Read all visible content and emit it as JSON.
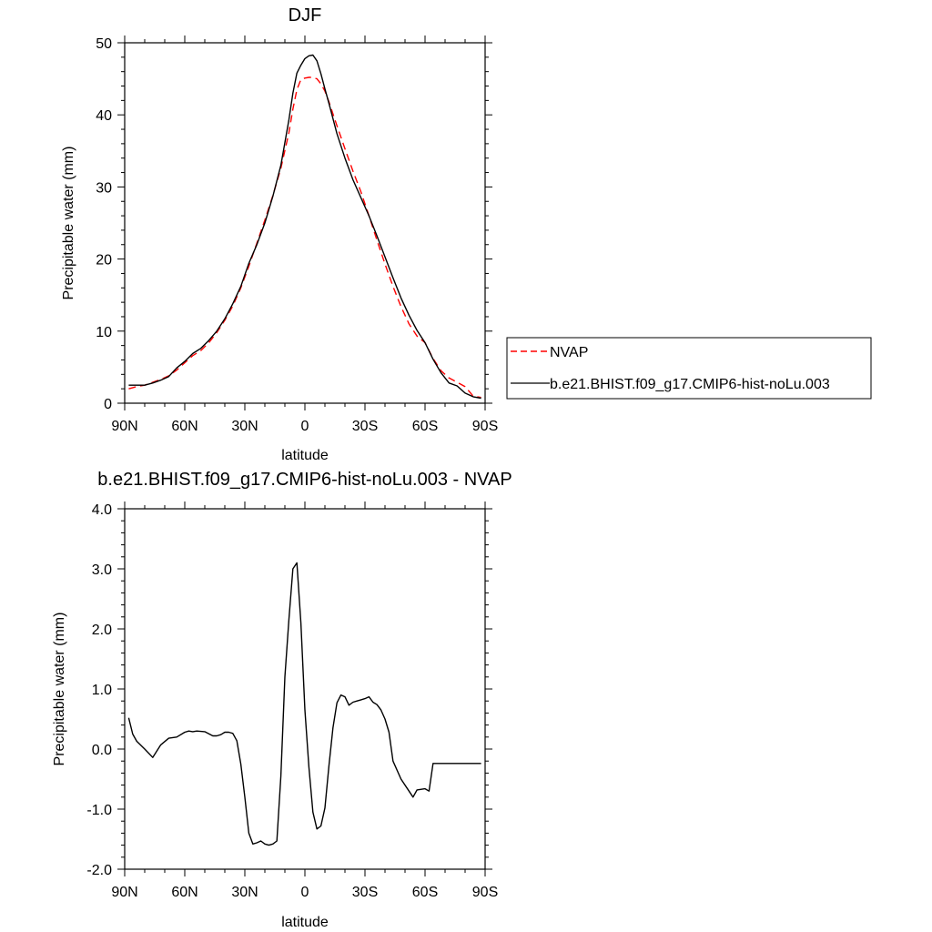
{
  "chart_data": [
    {
      "type": "line",
      "title": "DJF",
      "xlabel": "latitude",
      "ylabel": "Precipitable water (mm)",
      "xlim": [
        -90,
        90
      ],
      "ylim": [
        0,
        50
      ],
      "x_ticks": [
        -90,
        -60,
        -30,
        0,
        30,
        60,
        90
      ],
      "x_tick_labels": [
        "90N",
        "60N",
        "30N",
        "0",
        "30S",
        "60S",
        "90S"
      ],
      "y_ticks": [
        0,
        10,
        20,
        30,
        40,
        50
      ],
      "y_tick_labels": [
        "0",
        "10",
        "20",
        "30",
        "40",
        "50"
      ],
      "legend_position": "right",
      "series": [
        {
          "name": "NVAP",
          "color": "#ff0000",
          "dash": "dashed",
          "x": [
            -88,
            -84,
            -80,
            -76,
            -72,
            -68,
            -64,
            -60,
            -56,
            -52,
            -48,
            -44,
            -40,
            -36,
            -32,
            -28,
            -24,
            -20,
            -16,
            -12,
            -8,
            -6,
            -4,
            -2,
            0,
            2,
            4,
            6,
            8,
            10,
            12,
            16,
            20,
            24,
            28,
            32,
            36,
            40,
            44,
            48,
            52,
            56,
            60,
            64,
            68,
            72,
            76,
            80,
            84,
            88
          ],
          "y": [
            2.0,
            2.3,
            2.5,
            2.9,
            3.3,
            3.8,
            4.6,
            5.6,
            6.6,
            7.3,
            8.4,
            9.8,
            11.5,
            13.5,
            16.0,
            19.0,
            22.2,
            25.4,
            28.8,
            32.6,
            37.5,
            40.8,
            43.5,
            44.9,
            45.1,
            45.2,
            45.2,
            45.0,
            44.3,
            43.3,
            41.8,
            38.5,
            35.3,
            32.2,
            29.3,
            26.0,
            22.6,
            19.3,
            16.2,
            13.4,
            11.0,
            9.3,
            8.4,
            6.2,
            4.5,
            3.5,
            2.9,
            2.3,
            1.0,
            0.8
          ]
        },
        {
          "name": "b.e21.BHIST.f09_g17.CMIP6-hist-noLu.003",
          "color": "#000000",
          "dash": "solid",
          "x": [
            -88,
            -84,
            -80,
            -76,
            -72,
            -68,
            -64,
            -60,
            -56,
            -52,
            -48,
            -44,
            -40,
            -36,
            -32,
            -28,
            -24,
            -20,
            -16,
            -12,
            -8,
            -6,
            -4,
            -2,
            0,
            2,
            4,
            6,
            8,
            10,
            12,
            16,
            20,
            24,
            28,
            32,
            36,
            40,
            44,
            48,
            52,
            56,
            60,
            64,
            68,
            72,
            76,
            80,
            84,
            88
          ],
          "y": [
            2.5,
            2.5,
            2.5,
            2.8,
            3.2,
            3.7,
            4.9,
            5.8,
            6.9,
            7.6,
            8.7,
            10.0,
            11.7,
            13.8,
            16.2,
            19.4,
            22.0,
            25.0,
            28.7,
            33.0,
            39.3,
            43.0,
            45.8,
            46.9,
            47.8,
            48.2,
            48.3,
            47.5,
            45.7,
            43.6,
            41.6,
            37.4,
            34.0,
            31.0,
            28.5,
            26.0,
            23.2,
            20.3,
            17.4,
            14.6,
            12.2,
            10.1,
            8.4,
            6.1,
            4.2,
            2.8,
            2.4,
            1.4,
            0.9,
            0.7
          ]
        }
      ]
    },
    {
      "type": "line",
      "title": "b.e21.BHIST.f09_g17.CMIP6-hist-noLu.003 - NVAP",
      "xlabel": "latitude",
      "ylabel": "Precipitable water (mm)",
      "xlim": [
        -90,
        90
      ],
      "ylim": [
        -2.0,
        4.0
      ],
      "x_ticks": [
        -90,
        -60,
        -30,
        0,
        30,
        60,
        90
      ],
      "x_tick_labels": [
        "90N",
        "60N",
        "30N",
        "0",
        "30S",
        "60S",
        "90S"
      ],
      "y_ticks": [
        -2,
        -1,
        0,
        1,
        2,
        3,
        4
      ],
      "y_tick_labels": [
        "-2.0",
        "-1.0",
        "0.0",
        "1.0",
        "2.0",
        "3.0",
        "4.0"
      ],
      "series": [
        {
          "color": "#000000",
          "dash": "solid",
          "x": [
            -88,
            -86,
            -84,
            -80,
            -76,
            -72,
            -68,
            -64,
            -60,
            -58,
            -56,
            -54,
            -50,
            -46,
            -44,
            -42,
            -40,
            -38,
            -36,
            -34,
            -32,
            -30,
            -28,
            -26,
            -24,
            -22,
            -20,
            -18,
            -16,
            -14,
            -12,
            -10,
            -8,
            -6,
            -4,
            -2,
            0,
            2,
            4,
            6,
            8,
            10,
            12,
            14,
            16,
            18,
            20,
            22,
            24,
            26,
            28,
            30,
            32,
            34,
            36,
            38,
            40,
            42,
            44,
            48,
            52,
            54,
            56,
            60,
            62,
            64,
            66,
            68,
            70,
            72,
            74,
            76,
            78,
            80,
            82,
            84,
            86,
            88
          ],
          "y": [
            0.52,
            0.25,
            0.13,
            0.0,
            -0.14,
            0.07,
            0.18,
            0.2,
            0.28,
            0.3,
            0.29,
            0.3,
            0.29,
            0.22,
            0.22,
            0.24,
            0.28,
            0.28,
            0.26,
            0.14,
            -0.25,
            -0.8,
            -1.4,
            -1.58,
            -1.56,
            -1.53,
            -1.58,
            -1.6,
            -1.58,
            -1.53,
            -0.45,
            1.2,
            2.15,
            3.0,
            3.1,
            2.1,
            0.65,
            -0.3,
            -1.05,
            -1.33,
            -1.28,
            -0.98,
            -0.28,
            0.35,
            0.77,
            0.9,
            0.87,
            0.73,
            0.78,
            0.8,
            0.82,
            0.84,
            0.87,
            0.78,
            0.74,
            0.65,
            0.5,
            0.28,
            -0.2,
            -0.5,
            -0.7,
            -0.8,
            -0.68,
            -0.66,
            -0.7,
            -0.24,
            -0.24,
            -0.24,
            -0.24,
            -0.24,
            -0.24,
            -0.24,
            -0.24,
            -0.24,
            -0.24,
            -0.24,
            -0.24,
            -0.24
          ]
        }
      ]
    }
  ]
}
